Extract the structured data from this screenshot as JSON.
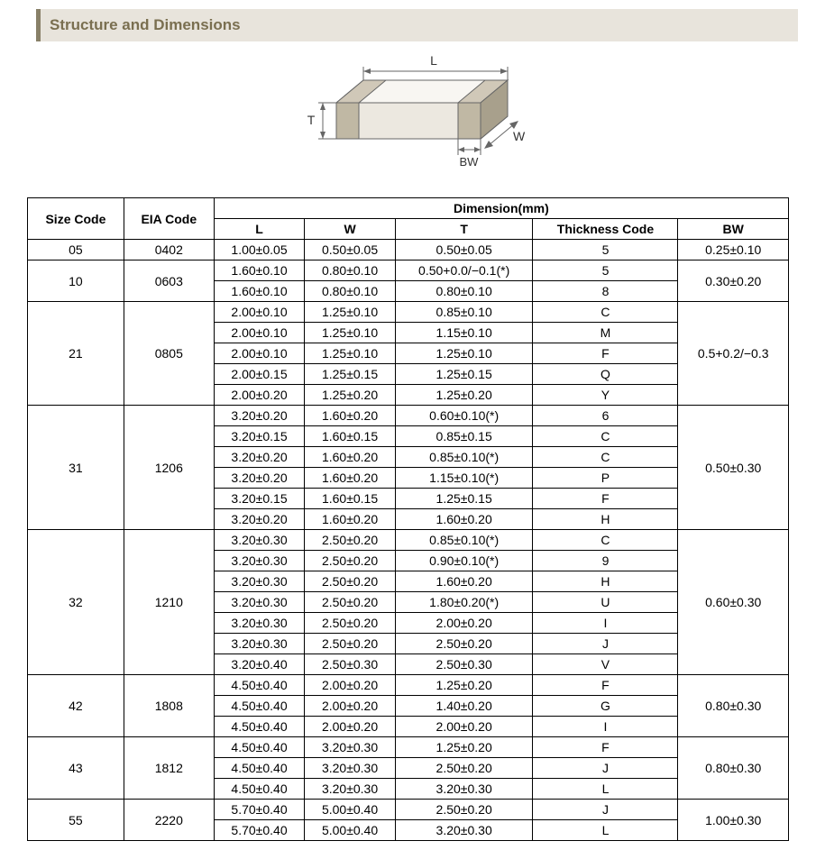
{
  "title": "Structure and Dimensions",
  "diagram": {
    "labels": {
      "L": "L",
      "W": "W",
      "T": "T",
      "BW": "BW"
    },
    "stroke": "#666666",
    "fill_top": "#f8f6f2",
    "fill_front": "#ece8e0",
    "fill_side": "#d8d2c4",
    "fill_band_top": "#d0c8b8",
    "fill_band_front": "#c0b8a4",
    "fill_band_side": "#a8a08c"
  },
  "table": {
    "headers": {
      "size_code": "Size Code",
      "eia_code": "EIA Code",
      "dimension": "Dimension(mm)",
      "L": "L",
      "W": "W",
      "T": "T",
      "thickness_code": "Thickness Code",
      "BW": "BW"
    },
    "groups": [
      {
        "size_code": "05",
        "eia_code": "0402",
        "bw": "0.25±0.10",
        "rows": [
          {
            "L": "1.00±0.05",
            "W": "0.50±0.05",
            "T": "0.50±0.05",
            "tc": "5"
          }
        ]
      },
      {
        "size_code": "10",
        "eia_code": "0603",
        "bw": "0.30±0.20",
        "rows": [
          {
            "L": "1.60±0.10",
            "W": "0.80±0.10",
            "T": "0.50+0.0/−0.1(*)",
            "tc": "5"
          },
          {
            "L": "1.60±0.10",
            "W": "0.80±0.10",
            "T": "0.80±0.10",
            "tc": "8"
          }
        ]
      },
      {
        "size_code": "21",
        "eia_code": "0805",
        "bw": "0.5+0.2/−0.3",
        "rows": [
          {
            "L": "2.00±0.10",
            "W": "1.25±0.10",
            "T": "0.85±0.10",
            "tc": "C"
          },
          {
            "L": "2.00±0.10",
            "W": "1.25±0.10",
            "T": "1.15±0.10",
            "tc": "M"
          },
          {
            "L": "2.00±0.10",
            "W": "1.25±0.10",
            "T": "1.25±0.10",
            "tc": "F"
          },
          {
            "L": "2.00±0.15",
            "W": "1.25±0.15",
            "T": "1.25±0.15",
            "tc": "Q"
          },
          {
            "L": "2.00±0.20",
            "W": "1.25±0.20",
            "T": "1.25±0.20",
            "tc": "Y"
          }
        ]
      },
      {
        "size_code": "31",
        "eia_code": "1206",
        "bw": "0.50±0.30",
        "rows": [
          {
            "L": "3.20±0.20",
            "W": "1.60±0.20",
            "T": "0.60±0.10(*)",
            "tc": "6"
          },
          {
            "L": "3.20±0.15",
            "W": "1.60±0.15",
            "T": "0.85±0.15",
            "tc": "C"
          },
          {
            "L": "3.20±0.20",
            "W": "1.60±0.20",
            "T": "0.85±0.10(*)",
            "tc": "C"
          },
          {
            "L": "3.20±0.20",
            "W": "1.60±0.20",
            "T": "1.15±0.10(*)",
            "tc": "P"
          },
          {
            "L": "3.20±0.15",
            "W": "1.60±0.15",
            "T": "1.25±0.15",
            "tc": "F"
          },
          {
            "L": "3.20±0.20",
            "W": "1.60±0.20",
            "T": "1.60±0.20",
            "tc": "H"
          }
        ]
      },
      {
        "size_code": "32",
        "eia_code": "1210",
        "bw": "0.60±0.30",
        "rows": [
          {
            "L": "3.20±0.30",
            "W": "2.50±0.20",
            "T": "0.85±0.10(*)",
            "tc": "C"
          },
          {
            "L": "3.20±0.30",
            "W": "2.50±0.20",
            "T": "0.90±0.10(*)",
            "tc": "9"
          },
          {
            "L": "3.20±0.30",
            "W": "2.50±0.20",
            "T": "1.60±0.20",
            "tc": "H"
          },
          {
            "L": "3.20±0.30",
            "W": "2.50±0.20",
            "T": "1.80±0.20(*)",
            "tc": "U"
          },
          {
            "L": "3.20±0.30",
            "W": "2.50±0.20",
            "T": "2.00±0.20",
            "tc": "I"
          },
          {
            "L": "3.20±0.30",
            "W": "2.50±0.20",
            "T": "2.50±0.20",
            "tc": "J"
          },
          {
            "L": "3.20±0.40",
            "W": "2.50±0.30",
            "T": "2.50±0.30",
            "tc": "V"
          }
        ]
      },
      {
        "size_code": "42",
        "eia_code": "1808",
        "bw": "0.80±0.30",
        "rows": [
          {
            "L": "4.50±0.40",
            "W": "2.00±0.20",
            "T": "1.25±0.20",
            "tc": "F"
          },
          {
            "L": "4.50±0.40",
            "W": "2.00±0.20",
            "T": "1.40±0.20",
            "tc": "G"
          },
          {
            "L": "4.50±0.40",
            "W": "2.00±0.20",
            "T": "2.00±0.20",
            "tc": "I"
          }
        ]
      },
      {
        "size_code": "43",
        "eia_code": "1812",
        "bw": "0.80±0.30",
        "rows": [
          {
            "L": "4.50±0.40",
            "W": "3.20±0.30",
            "T": "1.25±0.20",
            "tc": "F"
          },
          {
            "L": "4.50±0.40",
            "W": "3.20±0.30",
            "T": "2.50±0.20",
            "tc": "J"
          },
          {
            "L": "4.50±0.40",
            "W": "3.20±0.30",
            "T": "3.20±0.30",
            "tc": "L"
          }
        ]
      },
      {
        "size_code": "55",
        "eia_code": "2220",
        "bw": "1.00±0.30",
        "rows": [
          {
            "L": "5.70±0.40",
            "W": "5.00±0.40",
            "T": "2.50±0.20",
            "tc": "J"
          },
          {
            "L": "5.70±0.40",
            "W": "5.00±0.40",
            "T": "3.20±0.30",
            "tc": "L"
          }
        ]
      }
    ]
  }
}
